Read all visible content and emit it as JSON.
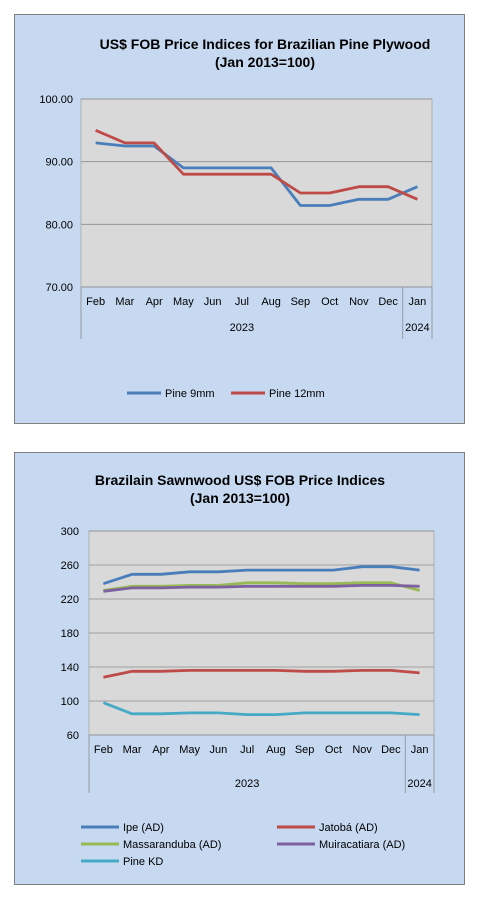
{
  "chart_data": [
    {
      "type": "line",
      "title": "US$ FOB Price Indices for Brazilian  Pine Plywood",
      "subtitle": "(Jan 2013=100)",
      "categories": [
        "Feb",
        "Mar",
        "Apr",
        "May",
        "Jun",
        "Jul",
        "Aug",
        "Sep",
        "Oct",
        "Nov",
        "Dec",
        "Jan"
      ],
      "year_groups": [
        {
          "label": "2023",
          "from": 0,
          "to": 10
        },
        {
          "label": "2024",
          "from": 11,
          "to": 11
        }
      ],
      "ylim": [
        70,
        100
      ],
      "yticks": [
        70,
        80,
        90,
        100
      ],
      "ytick_labels": [
        "70.00",
        "80.00",
        "90.00",
        "100.00"
      ],
      "grid": true,
      "legend": "bottom",
      "series": [
        {
          "name": "Pine 9mm",
          "color": "#4a7ebb",
          "values": [
            93,
            92.5,
            92.5,
            89,
            89,
            89,
            89,
            83,
            83,
            84,
            84,
            86
          ]
        },
        {
          "name": "Pine 12mm",
          "color": "#be4b48",
          "values": [
            95,
            93,
            93,
            88,
            88,
            88,
            88,
            85,
            85,
            86,
            86,
            84
          ]
        }
      ]
    },
    {
      "type": "line",
      "title": "Brazilain Sawnwood US$ FOB Price Indices",
      "subtitle": "(Jan 2013=100)",
      "categories": [
        "Feb",
        "Mar",
        "Apr",
        "May",
        "Jun",
        "Jul",
        "Aug",
        "Sep",
        "Oct",
        "Nov",
        "Dec",
        "Jan"
      ],
      "year_groups": [
        {
          "label": "2023",
          "from": 0,
          "to": 10
        },
        {
          "label": "2024",
          "from": 11,
          "to": 11
        }
      ],
      "ylim": [
        60,
        300
      ],
      "yticks": [
        60,
        100,
        140,
        180,
        220,
        260,
        300
      ],
      "ytick_labels": [
        "60",
        "100",
        "140",
        "180",
        "220",
        "260",
        "300"
      ],
      "grid": true,
      "legend": "bottom",
      "series": [
        {
          "name": "Ipe (AD)",
          "color": "#4a7ebb",
          "values": [
            238,
            249,
            249,
            252,
            252,
            254,
            254,
            254,
            254,
            258,
            258,
            254
          ]
        },
        {
          "name": "Jatobá (AD)",
          "color": "#be4b48",
          "values": [
            128,
            135,
            135,
            136,
            136,
            136,
            136,
            135,
            135,
            136,
            136,
            133
          ]
        },
        {
          "name": "Massaranduba (AD)",
          "color": "#98b954",
          "values": [
            230,
            235,
            235,
            236,
            236,
            239,
            239,
            238,
            238,
            239,
            239,
            230
          ]
        },
        {
          "name": "Muiracatiara (AD)",
          "color": "#7d60a0",
          "values": [
            229,
            233,
            233,
            234,
            234,
            235,
            235,
            235,
            235,
            236,
            236,
            235
          ]
        },
        {
          "name": "Pine KD",
          "color": "#46aac5",
          "values": [
            98,
            85,
            85,
            86,
            86,
            84,
            84,
            86,
            86,
            86,
            86,
            84
          ]
        }
      ]
    }
  ]
}
